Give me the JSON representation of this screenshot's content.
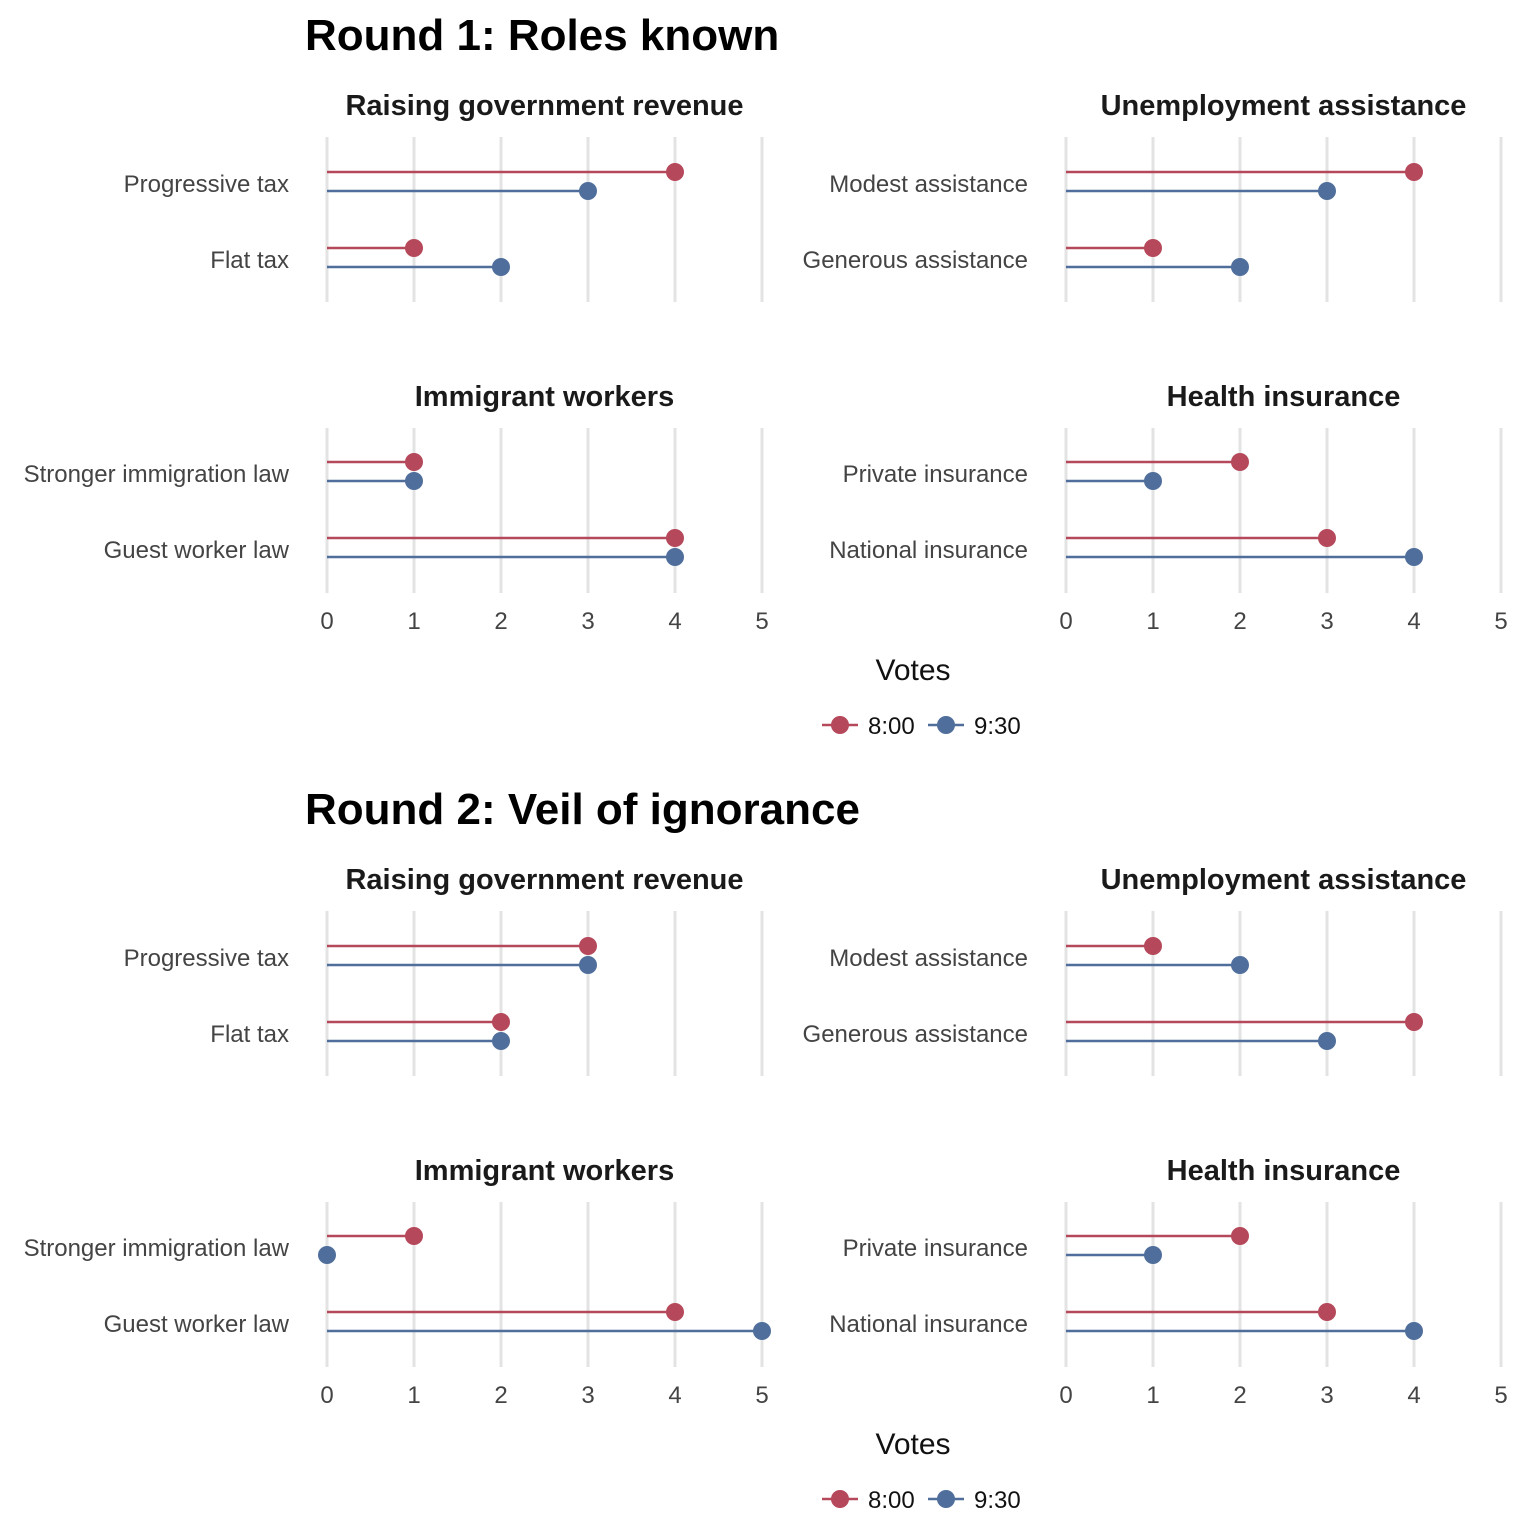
{
  "colors": {
    "8:00": "#b5485a",
    "9:30": "#4f6e9c"
  },
  "chart_data": [
    {
      "type": "dot-lollipop",
      "title": "Round 1: Roles known",
      "xlabel": "Votes",
      "xlim": [
        0,
        5
      ],
      "ticks": [
        "0",
        "1",
        "2",
        "3",
        "4",
        "5"
      ],
      "legend": {
        "position": "bottom",
        "entries": [
          "8:00",
          "9:30"
        ]
      },
      "facets": [
        {
          "title": "Raising government revenue",
          "categories": [
            "Progressive tax",
            "Flat tax"
          ],
          "series": [
            {
              "name": "8:00",
              "values": [
                4,
                1
              ]
            },
            {
              "name": "9:30",
              "values": [
                3,
                2
              ]
            }
          ]
        },
        {
          "title": "Unemployment assistance",
          "categories": [
            "Modest assistance",
            "Generous assistance"
          ],
          "series": [
            {
              "name": "8:00",
              "values": [
                4,
                1
              ]
            },
            {
              "name": "9:30",
              "values": [
                3,
                2
              ]
            }
          ]
        },
        {
          "title": "Immigrant workers",
          "categories": [
            "Stronger immigration law",
            "Guest worker law"
          ],
          "series": [
            {
              "name": "8:00",
              "values": [
                1,
                4
              ]
            },
            {
              "name": "9:30",
              "values": [
                1,
                4
              ]
            }
          ]
        },
        {
          "title": "Health insurance",
          "categories": [
            "Private insurance",
            "National insurance"
          ],
          "series": [
            {
              "name": "8:00",
              "values": [
                2,
                3
              ]
            },
            {
              "name": "9:30",
              "values": [
                1,
                4
              ]
            }
          ]
        }
      ]
    },
    {
      "type": "dot-lollipop",
      "title": "Round 2: Veil of ignorance",
      "xlabel": "Votes",
      "xlim": [
        0,
        5
      ],
      "ticks": [
        "0",
        "1",
        "2",
        "3",
        "4",
        "5"
      ],
      "legend": {
        "position": "bottom",
        "entries": [
          "8:00",
          "9:30"
        ]
      },
      "facets": [
        {
          "title": "Raising government revenue",
          "categories": [
            "Progressive tax",
            "Flat tax"
          ],
          "series": [
            {
              "name": "8:00",
              "values": [
                3,
                2
              ]
            },
            {
              "name": "9:30",
              "values": [
                3,
                2
              ]
            }
          ]
        },
        {
          "title": "Unemployment assistance",
          "categories": [
            "Modest assistance",
            "Generous assistance"
          ],
          "series": [
            {
              "name": "8:00",
              "values": [
                1,
                4
              ]
            },
            {
              "name": "9:30",
              "values": [
                2,
                3
              ]
            }
          ]
        },
        {
          "title": "Immigrant workers",
          "categories": [
            "Stronger immigration law",
            "Guest worker law"
          ],
          "series": [
            {
              "name": "8:00",
              "values": [
                1,
                4
              ]
            },
            {
              "name": "9:30",
              "values": [
                0,
                5
              ]
            }
          ]
        },
        {
          "title": "Health insurance",
          "categories": [
            "Private insurance",
            "National insurance"
          ],
          "series": [
            {
              "name": "8:00",
              "values": [
                2,
                3
              ]
            },
            {
              "name": "9:30",
              "values": [
                1,
                4
              ]
            }
          ]
        }
      ]
    }
  ]
}
